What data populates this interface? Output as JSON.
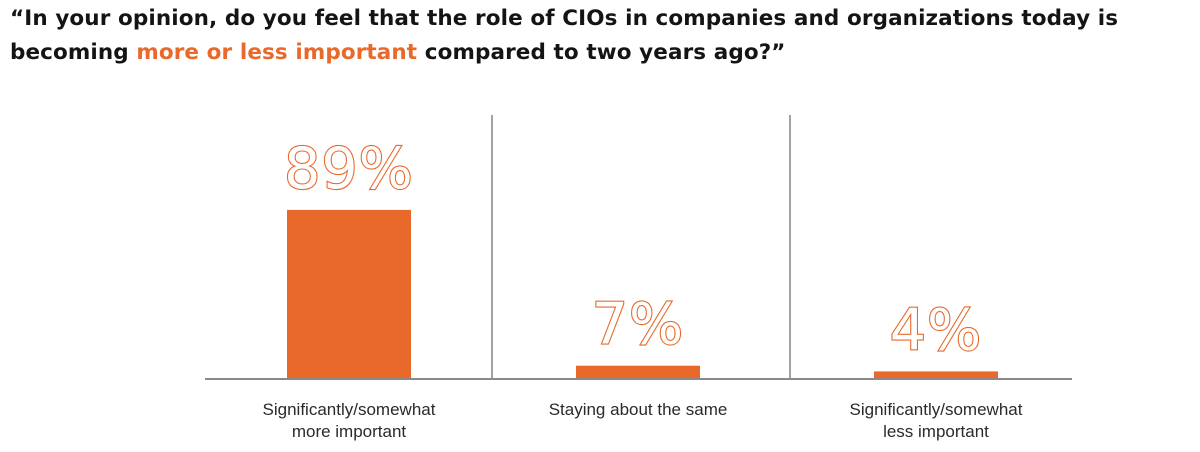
{
  "title": {
    "before": "“In your opinion, do you feel that the role of CIOs in companies and organizations today is becoming ",
    "highlight": "more or less important",
    "after": " compared to two years ago?”"
  },
  "colors": {
    "accent": "#E8692A",
    "text": "#141414",
    "axis": "#8a8a8a"
  },
  "chart_data": {
    "type": "bar",
    "categories": [
      [
        "Significantly/somewhat",
        "more important"
      ],
      [
        "Staying about the same"
      ],
      [
        "Significantly/somewhat",
        "less important"
      ]
    ],
    "values": [
      89,
      7,
      4
    ],
    "value_labels": [
      "89%",
      "7%",
      "4%"
    ],
    "unit": "%",
    "ylim": [
      0,
      100
    ],
    "grid": false,
    "legend": "none"
  }
}
